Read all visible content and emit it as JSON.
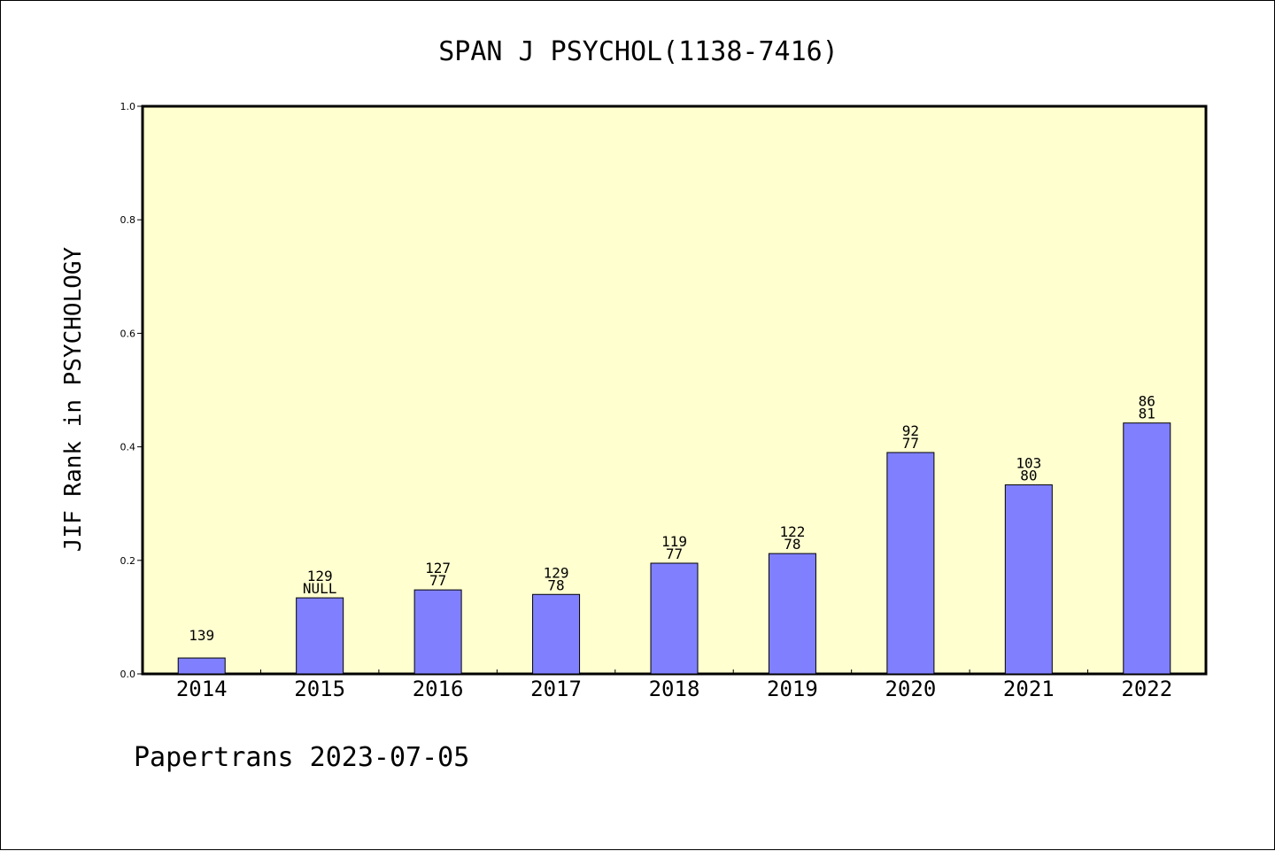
{
  "chart_data": {
    "type": "bar",
    "title": "SPAN J PSYCHOL(1138-7416)",
    "xlabel": "",
    "ylabel": "JIF Rank in PSYCHOLOGY",
    "ylim": [
      0.0,
      1.0
    ],
    "yticks": [
      "0.0",
      "0.2",
      "0.4",
      "0.6",
      "0.8",
      "1.0"
    ],
    "categories": [
      "2014",
      "2015",
      "2016",
      "2017",
      "2018",
      "2019",
      "2020",
      "2021",
      "2022"
    ],
    "values": [
      0.028,
      0.134,
      0.148,
      0.14,
      0.195,
      0.212,
      0.39,
      0.333,
      0.442
    ],
    "label_top": [
      "139",
      "129",
      "127",
      "129",
      "119",
      "122",
      "92",
      "103",
      "86"
    ],
    "label_bottom": [
      "",
      "NULL",
      "77",
      "78",
      "77",
      "78",
      "77",
      "80",
      "81"
    ],
    "grid": false,
    "legend": "none",
    "bar_color": "#8080ff",
    "plot_background": "#ffffd0"
  },
  "footer": "Papertrans 2023-07-05"
}
